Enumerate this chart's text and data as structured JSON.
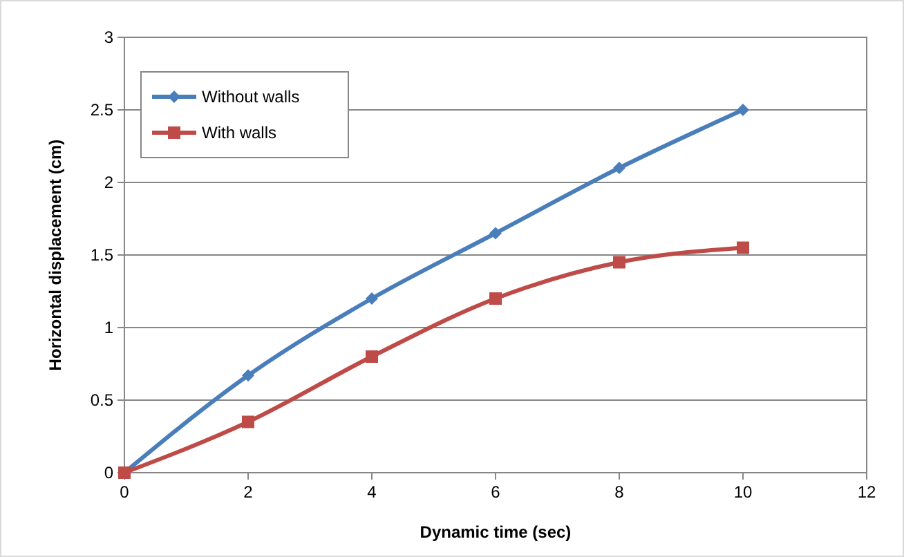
{
  "chart_data": {
    "type": "line",
    "xlabel": "Dynamic time (sec)",
    "ylabel": "Horizontal displacement (cm)",
    "x": [
      0,
      2,
      4,
      6,
      8,
      10
    ],
    "series": [
      {
        "name": "Without walls",
        "color": "#4a7ebb",
        "marker": "diamond",
        "values": [
          0,
          0.67,
          1.2,
          1.65,
          2.1,
          2.5
        ]
      },
      {
        "name": "With walls",
        "color": "#be4b48",
        "marker": "square",
        "values": [
          0,
          0.35,
          0.8,
          1.2,
          1.45,
          1.55
        ]
      }
    ],
    "xlim": [
      0,
      12
    ],
    "xticks": [
      0,
      2,
      4,
      6,
      8,
      10,
      12
    ],
    "ylim": [
      0,
      3
    ],
    "yticks": [
      0,
      0.5,
      1,
      1.5,
      2,
      2.5,
      3
    ],
    "grid": "y",
    "legend": "top left",
    "line_style": "solid"
  }
}
